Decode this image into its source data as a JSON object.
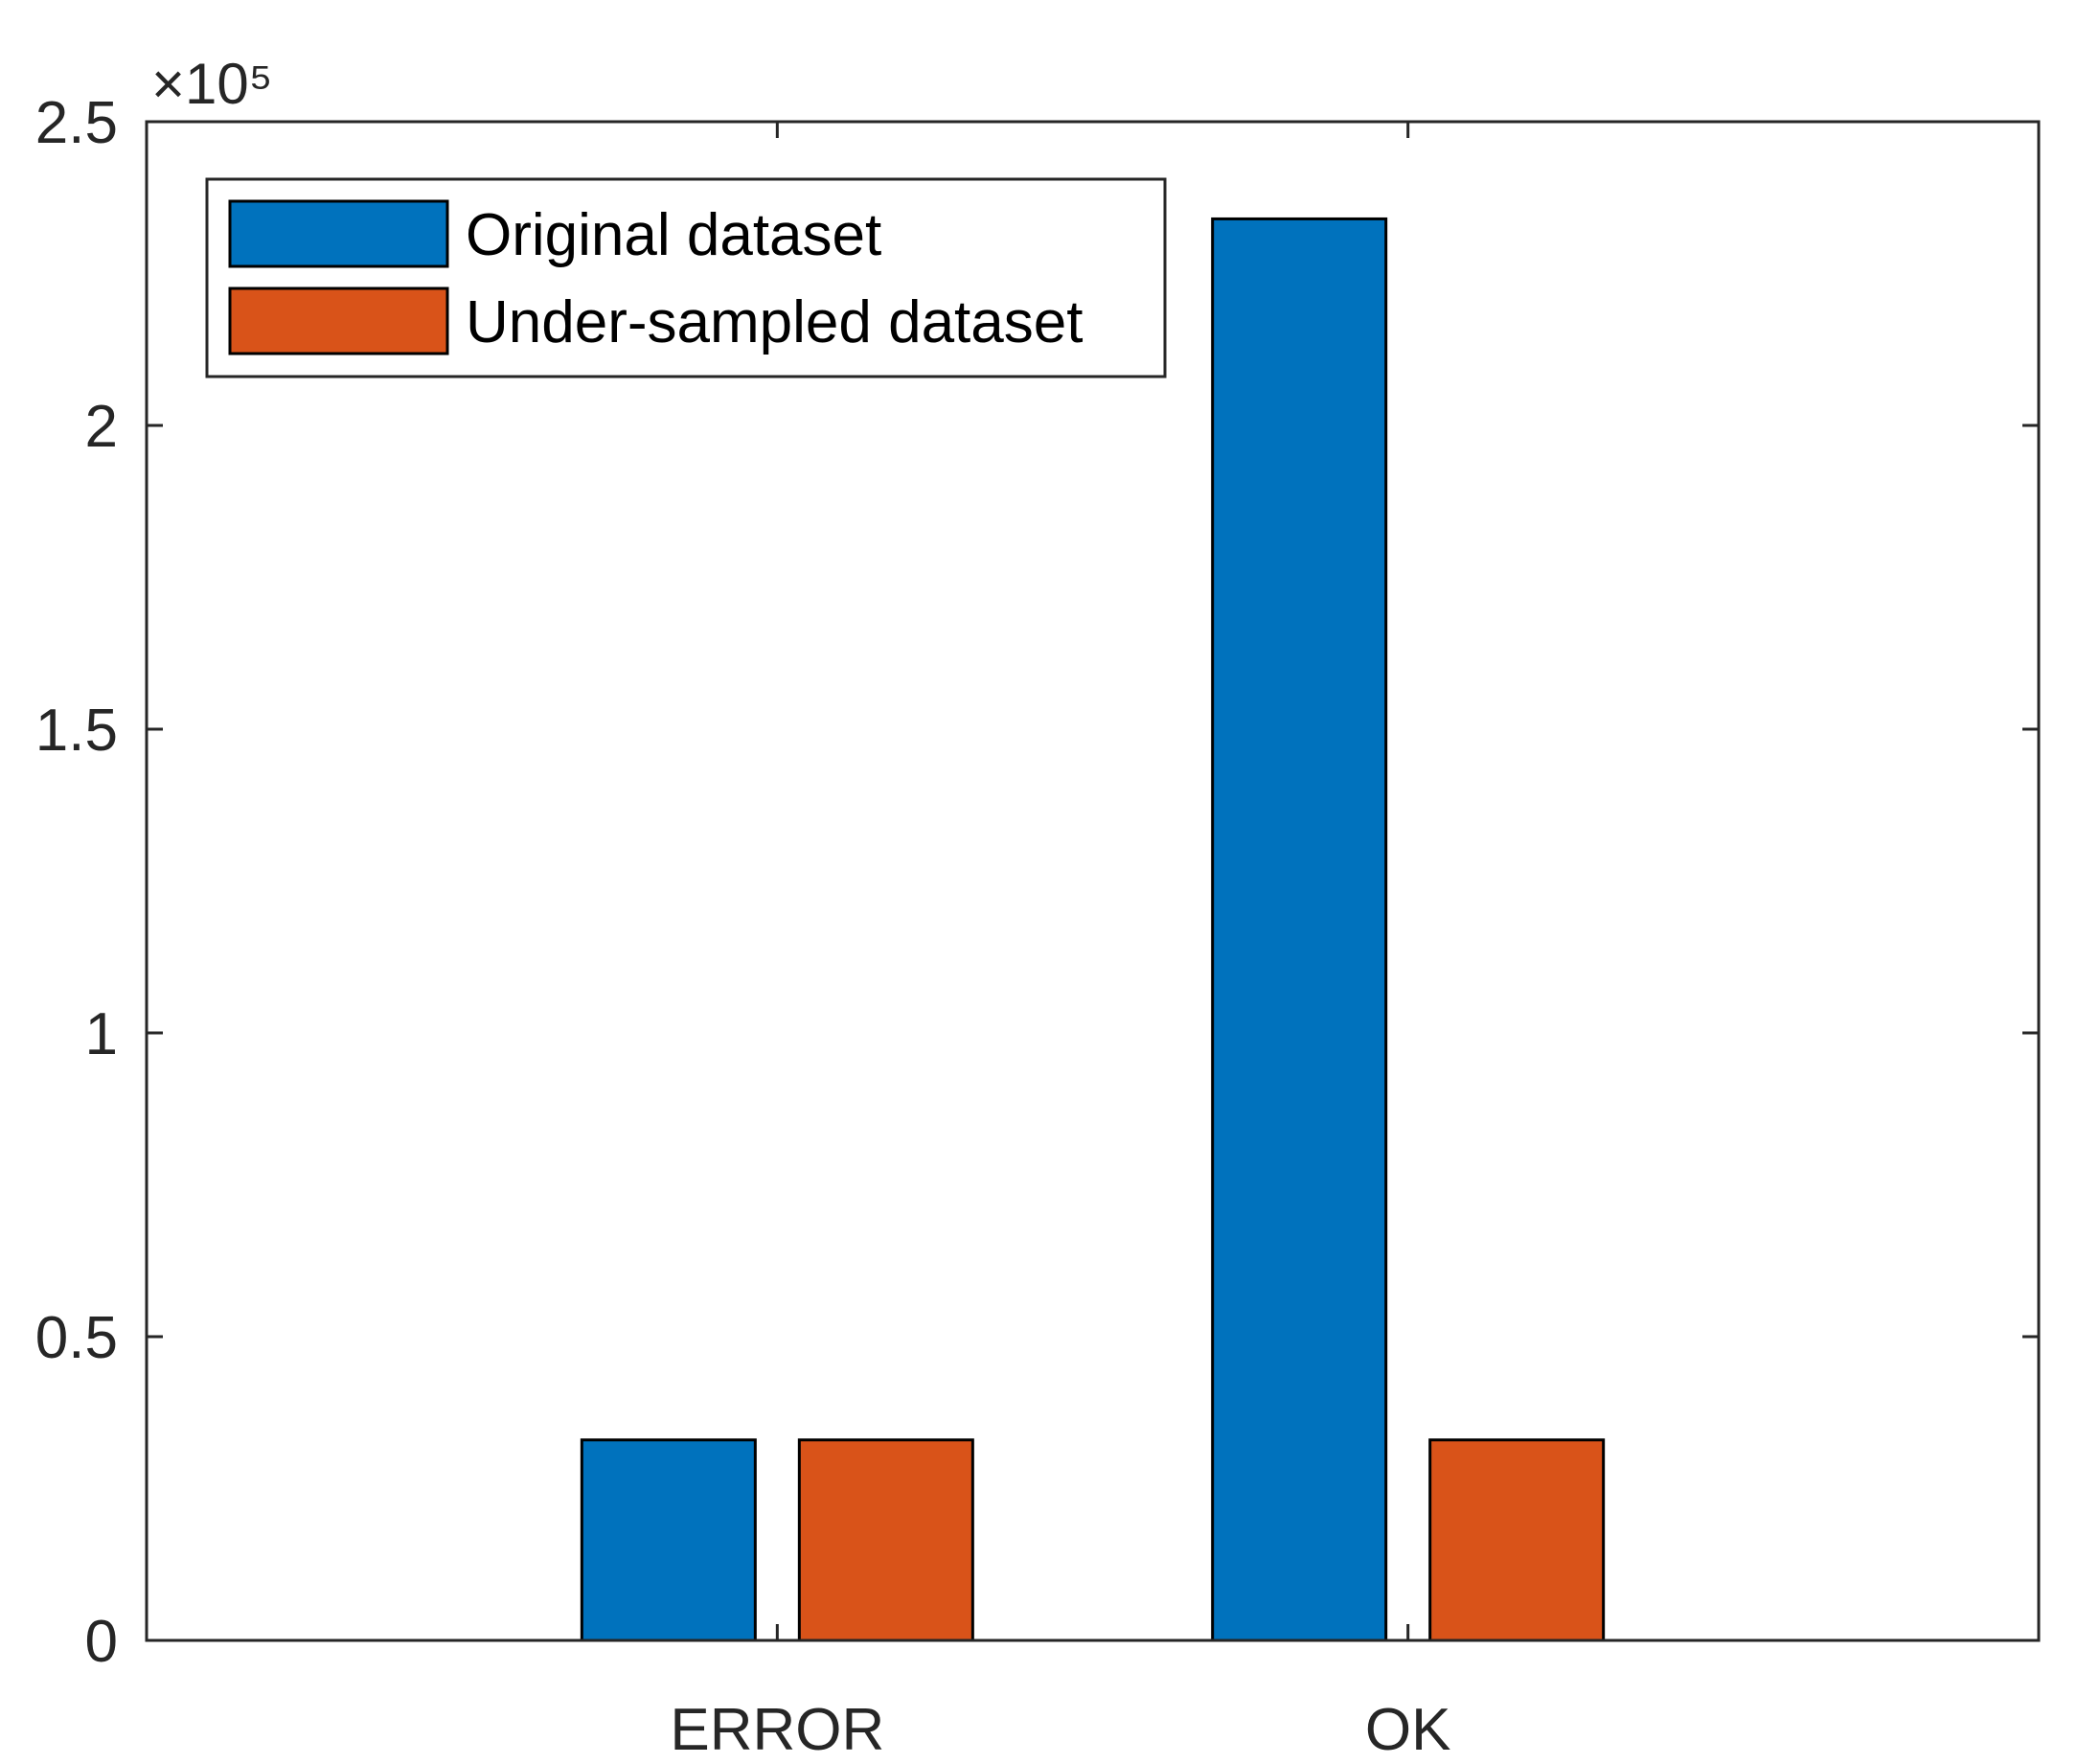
{
  "chart_data": {
    "type": "bar",
    "categories": [
      "ERROR",
      "OK"
    ],
    "series": [
      {
        "name": "Original dataset",
        "values": [
          33000,
          234000
        ],
        "color": "#0072BD"
      },
      {
        "name": "Under-sampled dataset",
        "values": [
          33000,
          33000
        ],
        "color": "#D95319"
      }
    ],
    "ylim": [
      0,
      250000
    ],
    "yticks": [
      0,
      50000,
      100000,
      150000,
      200000,
      250000
    ],
    "ytick_labels": [
      "0",
      "0.5",
      "1",
      "1.5",
      "2",
      "2.5"
    ],
    "y_exponent_label": "×10⁵",
    "title": "",
    "xlabel": "",
    "ylabel": "",
    "grid": false,
    "legend_position": "top-left"
  }
}
